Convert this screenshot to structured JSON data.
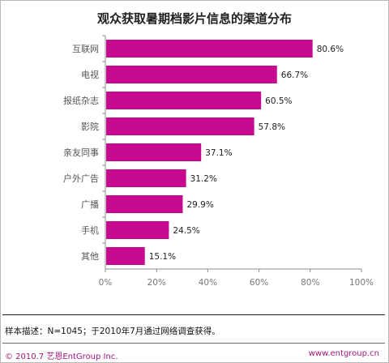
{
  "chart_data": {
    "type": "bar",
    "orientation": "horizontal",
    "title": "观众获取暑期档影片信息的渠道分布",
    "categories": [
      "互联网",
      "电视",
      "报纸杂志",
      "影院",
      "亲友同事",
      "户外广告",
      "广播",
      "手机",
      "其他"
    ],
    "values": [
      80.6,
      66.7,
      60.5,
      57.8,
      37.1,
      31.2,
      29.9,
      24.5,
      15.1
    ],
    "value_labels": [
      "80.6%",
      "66.7%",
      "60.5%",
      "57.8%",
      "37.1%",
      "31.2%",
      "29.9%",
      "24.5%",
      "15.1%"
    ],
    "xlim": [
      0,
      100
    ],
    "x_ticks": [
      "0%",
      "20%",
      "40%",
      "60%",
      "80%",
      "100%"
    ],
    "bar_color": "#c7098f",
    "grid": false,
    "legend": "none"
  },
  "footer": {
    "note": "样本描述：N=1045；于2010年7月通过网络调查获得。",
    "copyright": "© 2010.7  艺恩EntGroup Inc.",
    "website": "www.entgroup.cn"
  }
}
